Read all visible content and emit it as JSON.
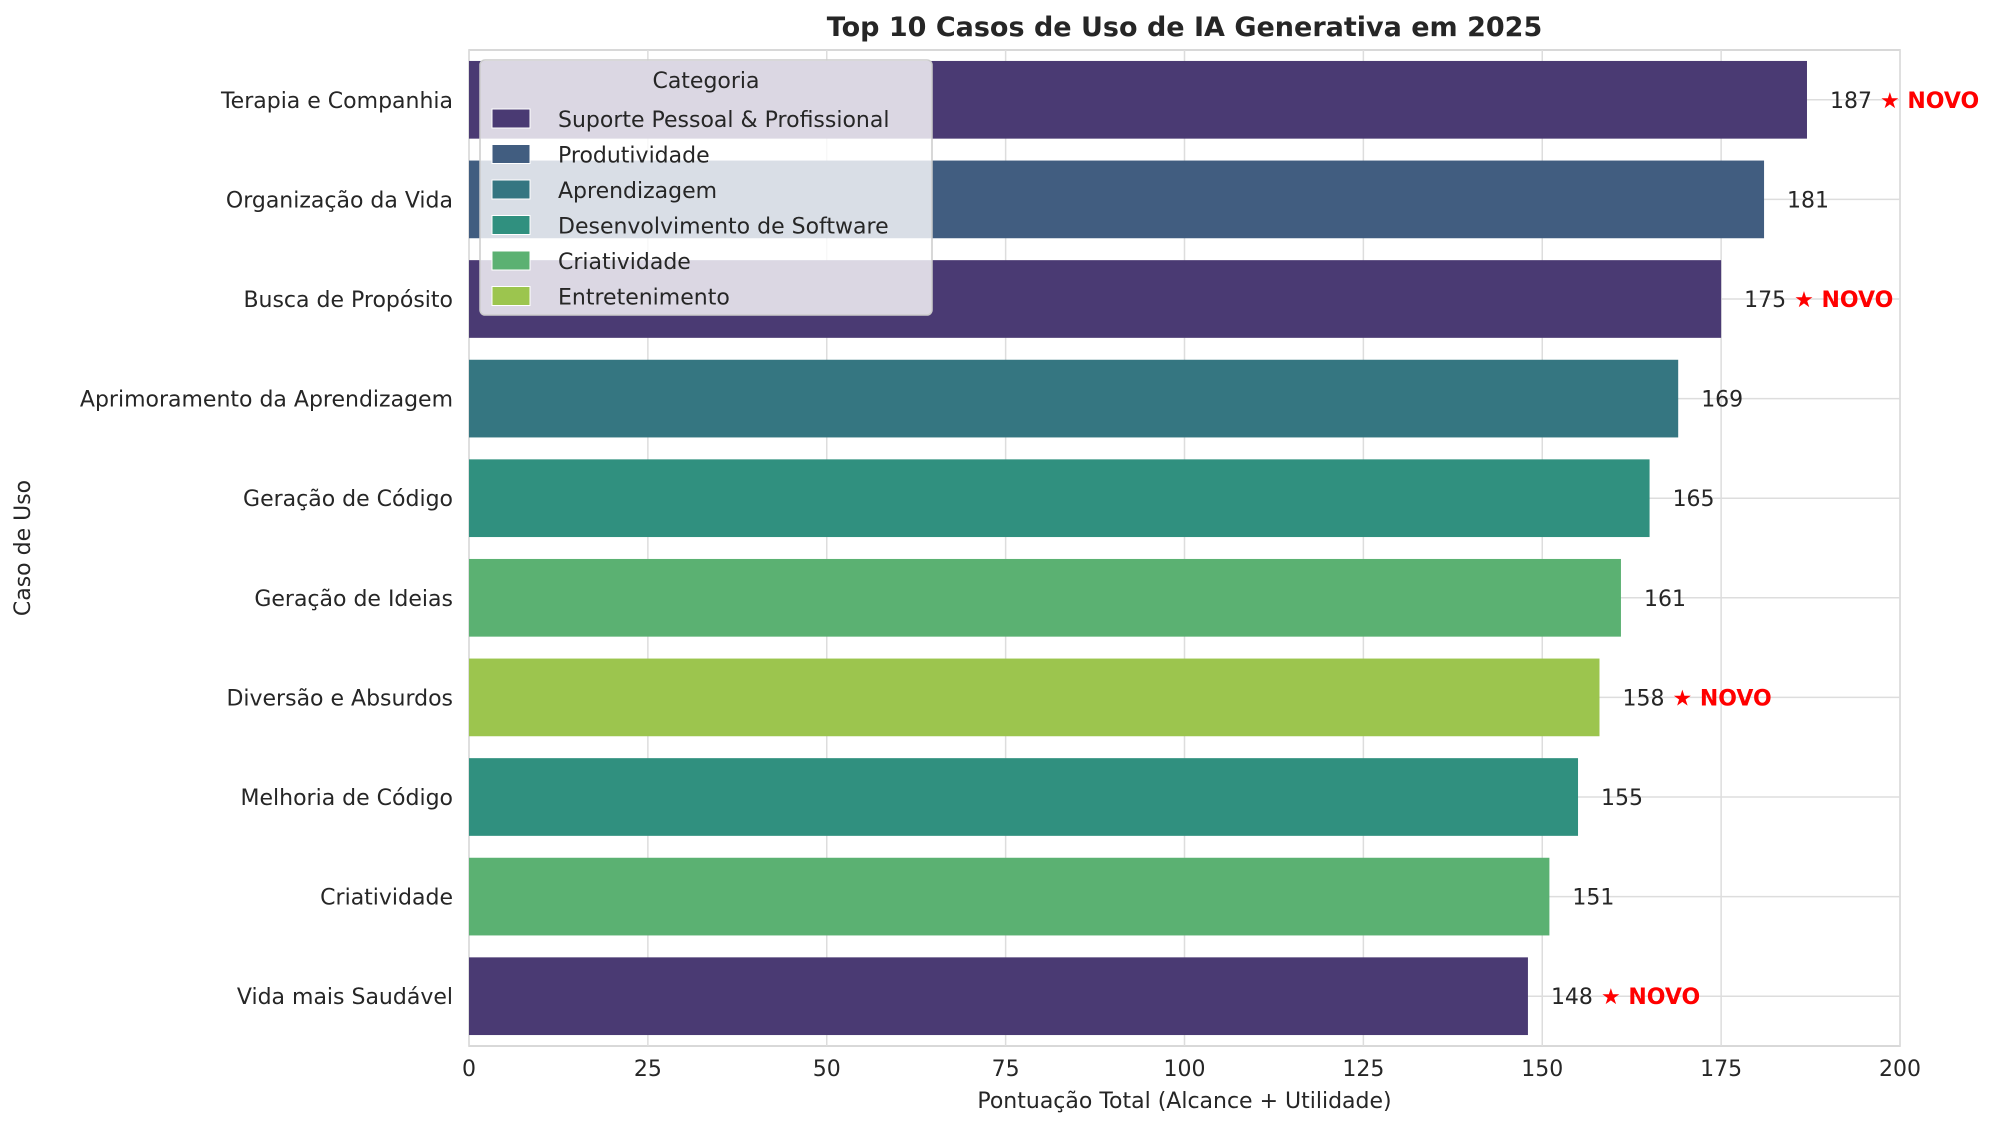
{
  "chart_data": {
    "type": "bar",
    "orientation": "horizontal",
    "title": "Top 10 Casos de Uso de IA Generativa em 2025",
    "xlabel": "Pontuação Total (Alcance + Utilidade)",
    "ylabel": "Caso de Uso",
    "xlim": [
      0,
      200
    ],
    "xticks": [
      "0",
      "25",
      "50",
      "75",
      "100",
      "125",
      "150",
      "175",
      "200"
    ],
    "grid": true,
    "legend_placement": "upper-left",
    "new_marker_text": "★ NOVO",
    "legend": {
      "title": "Categoria",
      "entries": [
        {
          "name": "Suporte Pessoal & Profissional",
          "color": "#4a3a73"
        },
        {
          "name": "Produtividade",
          "color": "#415d80"
        },
        {
          "name": "Aprendizagem",
          "color": "#357681"
        },
        {
          "name": "Desenvolvimento de Software",
          "color": "#30907f"
        },
        {
          "name": "Criatividade",
          "color": "#5bb172"
        },
        {
          "name": "Entretenimento",
          "color": "#9cc54e"
        }
      ]
    },
    "categories": [
      "Terapia e Companhia",
      "Organização da Vida",
      "Busca de Propósito",
      "Aprimoramento da Aprendizagem",
      "Geração de Código",
      "Geração de Ideias",
      "Diversão e Absurdos",
      "Melhoria de Código",
      "Criatividade",
      "Vida mais Saudável"
    ],
    "values": [
      187,
      181,
      175,
      169,
      165,
      161,
      158,
      155,
      151,
      148
    ],
    "value_labels": [
      "187",
      "181",
      "175",
      "169",
      "165",
      "161",
      "158",
      "155",
      "151",
      "148"
    ],
    "bar_category": [
      "Suporte Pessoal & Profissional",
      "Produtividade",
      "Suporte Pessoal & Profissional",
      "Aprendizagem",
      "Desenvolvimento de Software",
      "Criatividade",
      "Entretenimento",
      "Desenvolvimento de Software",
      "Criatividade",
      "Suporte Pessoal & Profissional"
    ],
    "is_new": [
      true,
      false,
      true,
      false,
      false,
      false,
      true,
      false,
      false,
      true
    ]
  }
}
